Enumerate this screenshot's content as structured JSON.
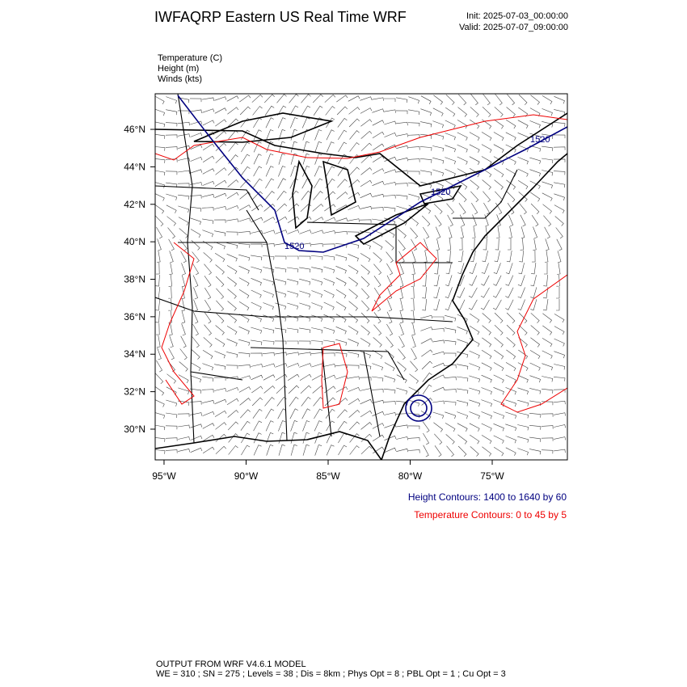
{
  "header": {
    "title": "IWFAQRP Eastern US Real Time WRF",
    "init": "Init: 2025-07-03_00:00:00",
    "valid": "Valid: 2025-07-07_09:00:00"
  },
  "fields": [
    "Temperature   (C)",
    "Height   (m)",
    "Winds   (kts)"
  ],
  "map": {
    "lon_range": [
      -95.54,
      -70.42
    ],
    "lat_range": [
      28.36,
      47.9
    ],
    "lon_ticks": [
      {
        "value": -95,
        "label": "95°W"
      },
      {
        "value": -90,
        "label": "90°W"
      },
      {
        "value": -85,
        "label": "85°W"
      },
      {
        "value": -80,
        "label": "80°W"
      },
      {
        "value": -75,
        "label": "75°W"
      }
    ],
    "lat_ticks": [
      {
        "value": 30,
        "label": "30°N"
      },
      {
        "value": 32,
        "label": "32°N"
      },
      {
        "value": 34,
        "label": "34°N"
      },
      {
        "value": 36,
        "label": "36°N"
      },
      {
        "value": 38,
        "label": "38°N"
      },
      {
        "value": 40,
        "label": "40°N"
      },
      {
        "value": 42,
        "label": "42°N"
      },
      {
        "value": 44,
        "label": "44°N"
      },
      {
        "value": 46,
        "label": "46°N"
      }
    ],
    "contour_labels": [
      "1520",
      "1520",
      "1520"
    ]
  },
  "legend": {
    "height": "Height Contours: 1400 to 1640 by 60",
    "temperature": "Temperature Contours: 0 to 45 by 5"
  },
  "footer": [
    "OUTPUT FROM WRF V4.6.1 MODEL",
    "WE = 310 ; SN = 275 ; Levels = 38 ; Dis = 8km ; Phys Opt = 8 ; PBL Opt = 1 ; Cu Opt = 3"
  ]
}
